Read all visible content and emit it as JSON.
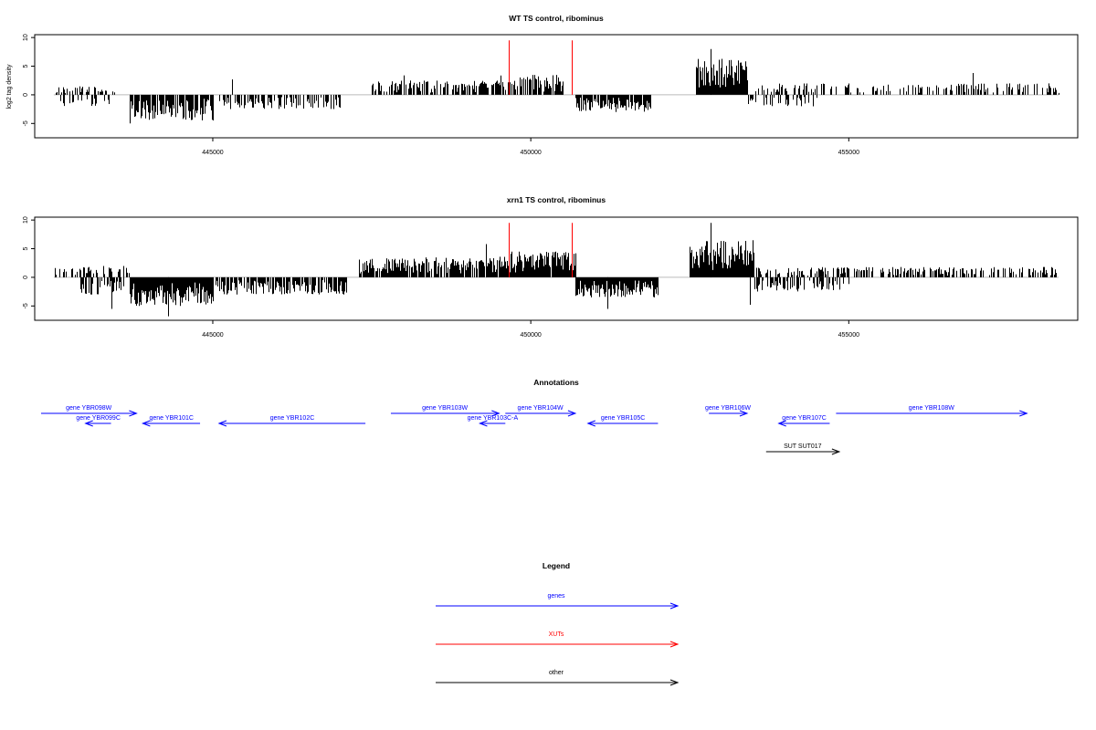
{
  "chart_data": [
    {
      "type": "bar",
      "title": "WT TS control, ribominus",
      "ylabel": "log2 tag density",
      "xlim": [
        442200,
        458600
      ],
      "ylim": [
        -7.5,
        10.5
      ],
      "x_ticks": [
        445000,
        450000,
        455000
      ],
      "y_ticks": [
        -5,
        0,
        5,
        10
      ],
      "baseline": 0,
      "regions": [
        {
          "start": 442500,
          "end": 443500,
          "kind": "pos",
          "level": 1.5,
          "density": 0.35
        },
        {
          "start": 442600,
          "end": 443400,
          "kind": "neg",
          "level": 2.0,
          "density": 0.4
        },
        {
          "start": 443700,
          "end": 445000,
          "kind": "neg",
          "level": 4.5,
          "density": 0.85
        },
        {
          "start": 445100,
          "end": 447000,
          "kind": "neg",
          "level": 2.5,
          "density": 0.5
        },
        {
          "start": 447500,
          "end": 449500,
          "kind": "pos",
          "level": 2.5,
          "density": 0.65
        },
        {
          "start": 449500,
          "end": 450500,
          "kind": "pos",
          "level": 3.5,
          "density": 0.7
        },
        {
          "start": 450700,
          "end": 451900,
          "kind": "neg",
          "level": 3.0,
          "density": 0.9
        },
        {
          "start": 452600,
          "end": 453400,
          "kind": "pos",
          "level": 6.5,
          "density": 1.0
        },
        {
          "start": 453400,
          "end": 454500,
          "kind": "neg",
          "level": 2.0,
          "density": 0.45
        },
        {
          "start": 453500,
          "end": 458300,
          "kind": "pos",
          "level": 2.0,
          "density": 0.35
        }
      ],
      "peaks": [
        {
          "x": 443700,
          "y": -5.0
        },
        {
          "x": 444050,
          "y": -4.2
        },
        {
          "x": 445300,
          "y": 2.7
        },
        {
          "x": 448000,
          "y": 3.4
        },
        {
          "x": 452820,
          "y": 8.0
        },
        {
          "x": 456950,
          "y": 3.8
        }
      ],
      "xut_markers": [
        {
          "x": 449650,
          "y": 9.5
        },
        {
          "x": 450650,
          "y": 9.5
        }
      ]
    },
    {
      "type": "bar",
      "title": "xrn1 TS control, ribominus",
      "ylabel": "",
      "xlim": [
        442200,
        458600
      ],
      "ylim": [
        -7.5,
        10.5
      ],
      "x_ticks": [
        445000,
        450000,
        455000
      ],
      "y_ticks": [
        -5,
        0,
        5,
        10
      ],
      "baseline": 0,
      "regions": [
        {
          "start": 442500,
          "end": 443700,
          "kind": "pos",
          "level": 2.0,
          "density": 0.5
        },
        {
          "start": 442900,
          "end": 443600,
          "kind": "neg",
          "level": 3.0,
          "density": 0.6
        },
        {
          "start": 443700,
          "end": 445000,
          "kind": "neg",
          "level": 5.0,
          "density": 1.0
        },
        {
          "start": 445000,
          "end": 447100,
          "kind": "neg",
          "level": 3.0,
          "density": 0.75
        },
        {
          "start": 447300,
          "end": 449500,
          "kind": "pos",
          "level": 3.5,
          "density": 0.85
        },
        {
          "start": 449500,
          "end": 450700,
          "kind": "pos",
          "level": 4.5,
          "density": 0.95
        },
        {
          "start": 450700,
          "end": 452000,
          "kind": "neg",
          "level": 3.5,
          "density": 1.0
        },
        {
          "start": 452500,
          "end": 453500,
          "kind": "pos",
          "level": 6.5,
          "density": 1.0
        },
        {
          "start": 453500,
          "end": 455000,
          "kind": "neg",
          "level": 2.5,
          "density": 0.5
        },
        {
          "start": 453500,
          "end": 458300,
          "kind": "pos",
          "level": 1.8,
          "density": 0.55
        }
      ],
      "peaks": [
        {
          "x": 444300,
          "y": -6.8
        },
        {
          "x": 443400,
          "y": -5.5
        },
        {
          "x": 449300,
          "y": 5.8
        },
        {
          "x": 451200,
          "y": -5.5
        },
        {
          "x": 452820,
          "y": 9.5
        },
        {
          "x": 453450,
          "y": -4.8
        }
      ],
      "xut_markers": [
        {
          "x": 449650,
          "y": 9.5
        },
        {
          "x": 450650,
          "y": 9.5
        }
      ]
    }
  ],
  "annotations": {
    "title": "Annotations",
    "xlim": [
      442200,
      458600
    ],
    "features": [
      {
        "label": "gene YBR098W",
        "start": 442300,
        "end": 443800,
        "strand": "+",
        "row": 0,
        "type": "gene"
      },
      {
        "label": "gene YBR099C",
        "start": 443000,
        "end": 443400,
        "strand": "-",
        "row": 1,
        "type": "gene"
      },
      {
        "label": "gene YBR101C",
        "start": 443900,
        "end": 444800,
        "strand": "-",
        "row": 1,
        "type": "gene"
      },
      {
        "label": "gene YBR102C",
        "start": 445100,
        "end": 447400,
        "strand": "-",
        "row": 1,
        "type": "gene"
      },
      {
        "label": "gene YBR103W",
        "start": 447800,
        "end": 449500,
        "strand": "+",
        "row": 0,
        "type": "gene"
      },
      {
        "label": "gene YBR103C-A",
        "start": 449200,
        "end": 449600,
        "strand": "-",
        "row": 1,
        "type": "gene"
      },
      {
        "label": "gene YBR104W",
        "start": 449600,
        "end": 450700,
        "strand": "+",
        "row": 0,
        "type": "gene"
      },
      {
        "label": "gene YBR105C",
        "start": 450900,
        "end": 452000,
        "strand": "-",
        "row": 1,
        "type": "gene"
      },
      {
        "label": "gene YBR106W",
        "start": 452800,
        "end": 453400,
        "strand": "+",
        "row": 0,
        "type": "gene"
      },
      {
        "label": "gene YBR107C",
        "start": 453900,
        "end": 454700,
        "strand": "-",
        "row": 1,
        "type": "gene"
      },
      {
        "label": "gene YBR108W",
        "start": 454800,
        "end": 457800,
        "strand": "+",
        "row": 0,
        "type": "gene"
      },
      {
        "label": "SUT SUT017",
        "start": 453700,
        "end": 454850,
        "strand": "+",
        "row": 2,
        "type": "other"
      }
    ]
  },
  "legend": {
    "title": "Legend",
    "items": [
      {
        "label": "genes",
        "color": "#0000ff"
      },
      {
        "label": "XUTs",
        "color": "#ff0000"
      },
      {
        "label": "other",
        "color": "#000000"
      }
    ]
  },
  "colors": {
    "bars": "#000000",
    "baseline": "#bbbbbb",
    "xut": "#ff0000",
    "gene": "#0000ff",
    "other": "#000000"
  }
}
